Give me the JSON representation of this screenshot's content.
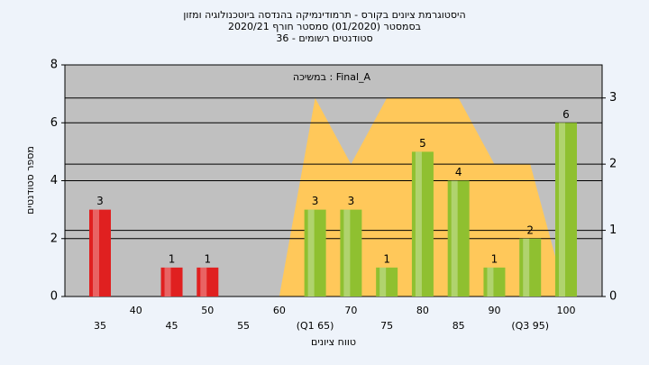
{
  "chart_data": {
    "type": "bar",
    "title": [
      "היסטוגרמת ציונים בקורס - תרמודינמיקה בהנדסה ביוטכנולוגיה ומזון",
      "בסמסטר  (01/2020)  סמסטר חורף 2020/21",
      "סטודנטים רשומים - 36"
    ],
    "annotation": "במשיכה : Final_A",
    "x_label": "טווח ציונים",
    "y_label": "מספר סטודנטים",
    "categories": [
      "35",
      "40",
      "45",
      "50",
      "55",
      "60",
      "(Q1 65)",
      "70",
      "75",
      "80",
      "85",
      "90",
      "(Q3 95)",
      "100"
    ],
    "values": [
      3,
      0,
      1,
      1,
      0,
      0,
      3,
      3,
      1,
      5,
      4,
      1,
      2,
      6
    ],
    "colors": [
      "#e02020",
      "#e02020",
      "#e02020",
      "#e02020",
      "#8fc030",
      "#8fc030",
      "#8fc030",
      "#8fc030",
      "#8fc030",
      "#8fc030",
      "#8fc030",
      "#8fc030",
      "#8fc030",
      "#8fc030"
    ],
    "area": {
      "axis": "y2",
      "color": "#ffc85a",
      "values": [
        null,
        null,
        null,
        null,
        null,
        0,
        3,
        2,
        3,
        3,
        3,
        2,
        2,
        0
      ]
    },
    "ylim": [
      0,
      8
    ],
    "yticks": [
      0,
      2,
      4,
      6,
      8
    ],
    "y2lim": [
      0,
      3.5
    ],
    "y2ticks": [
      0,
      1,
      2,
      3
    ],
    "grid": true
  }
}
